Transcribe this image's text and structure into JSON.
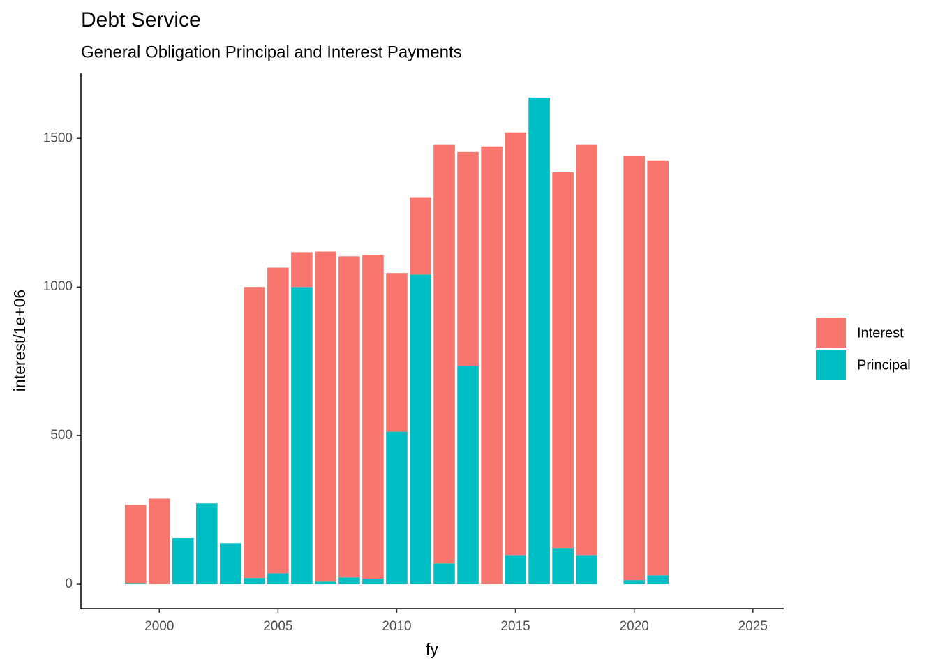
{
  "chart_data": {
    "type": "bar",
    "stacked": true,
    "title": "Debt Service",
    "subtitle": "General Obligation Principal and Interest Payments",
    "x_label": "fy",
    "y_label": "interest/1e+06",
    "x": [
      1999,
      2000,
      2001,
      2002,
      2003,
      2004,
      2005,
      2006,
      2007,
      2008,
      2009,
      2010,
      2011,
      2012,
      2013,
      2014,
      2015,
      2016,
      2017,
      2018,
      2020,
      2021
    ],
    "series": [
      {
        "name": "Interest",
        "color": "#F8766D",
        "values": [
          265,
          288,
          0,
          0,
          0,
          979,
          1028,
          117,
          1110,
          1080,
          1089,
          534,
          260,
          1408,
          719,
          1473,
          1422,
          0,
          1264,
          1380,
          1426,
          1396
        ]
      },
      {
        "name": "Principal",
        "color": "#00BFC4",
        "values": [
          2,
          0,
          155,
          272,
          138,
          21,
          37,
          1000,
          9,
          23,
          19,
          513,
          1042,
          70,
          735,
          0,
          98,
          1637,
          122,
          98,
          14,
          30
        ]
      }
    ],
    "xlim": [
      1996.7,
      2026.3
    ],
    "xticks": [
      2000,
      2005,
      2010,
      2015,
      2020,
      2025
    ],
    "ylim": [
      -82,
      1719
    ],
    "yticks": [
      0,
      500,
      1000,
      1500
    ],
    "grid": false,
    "legend": "right"
  }
}
